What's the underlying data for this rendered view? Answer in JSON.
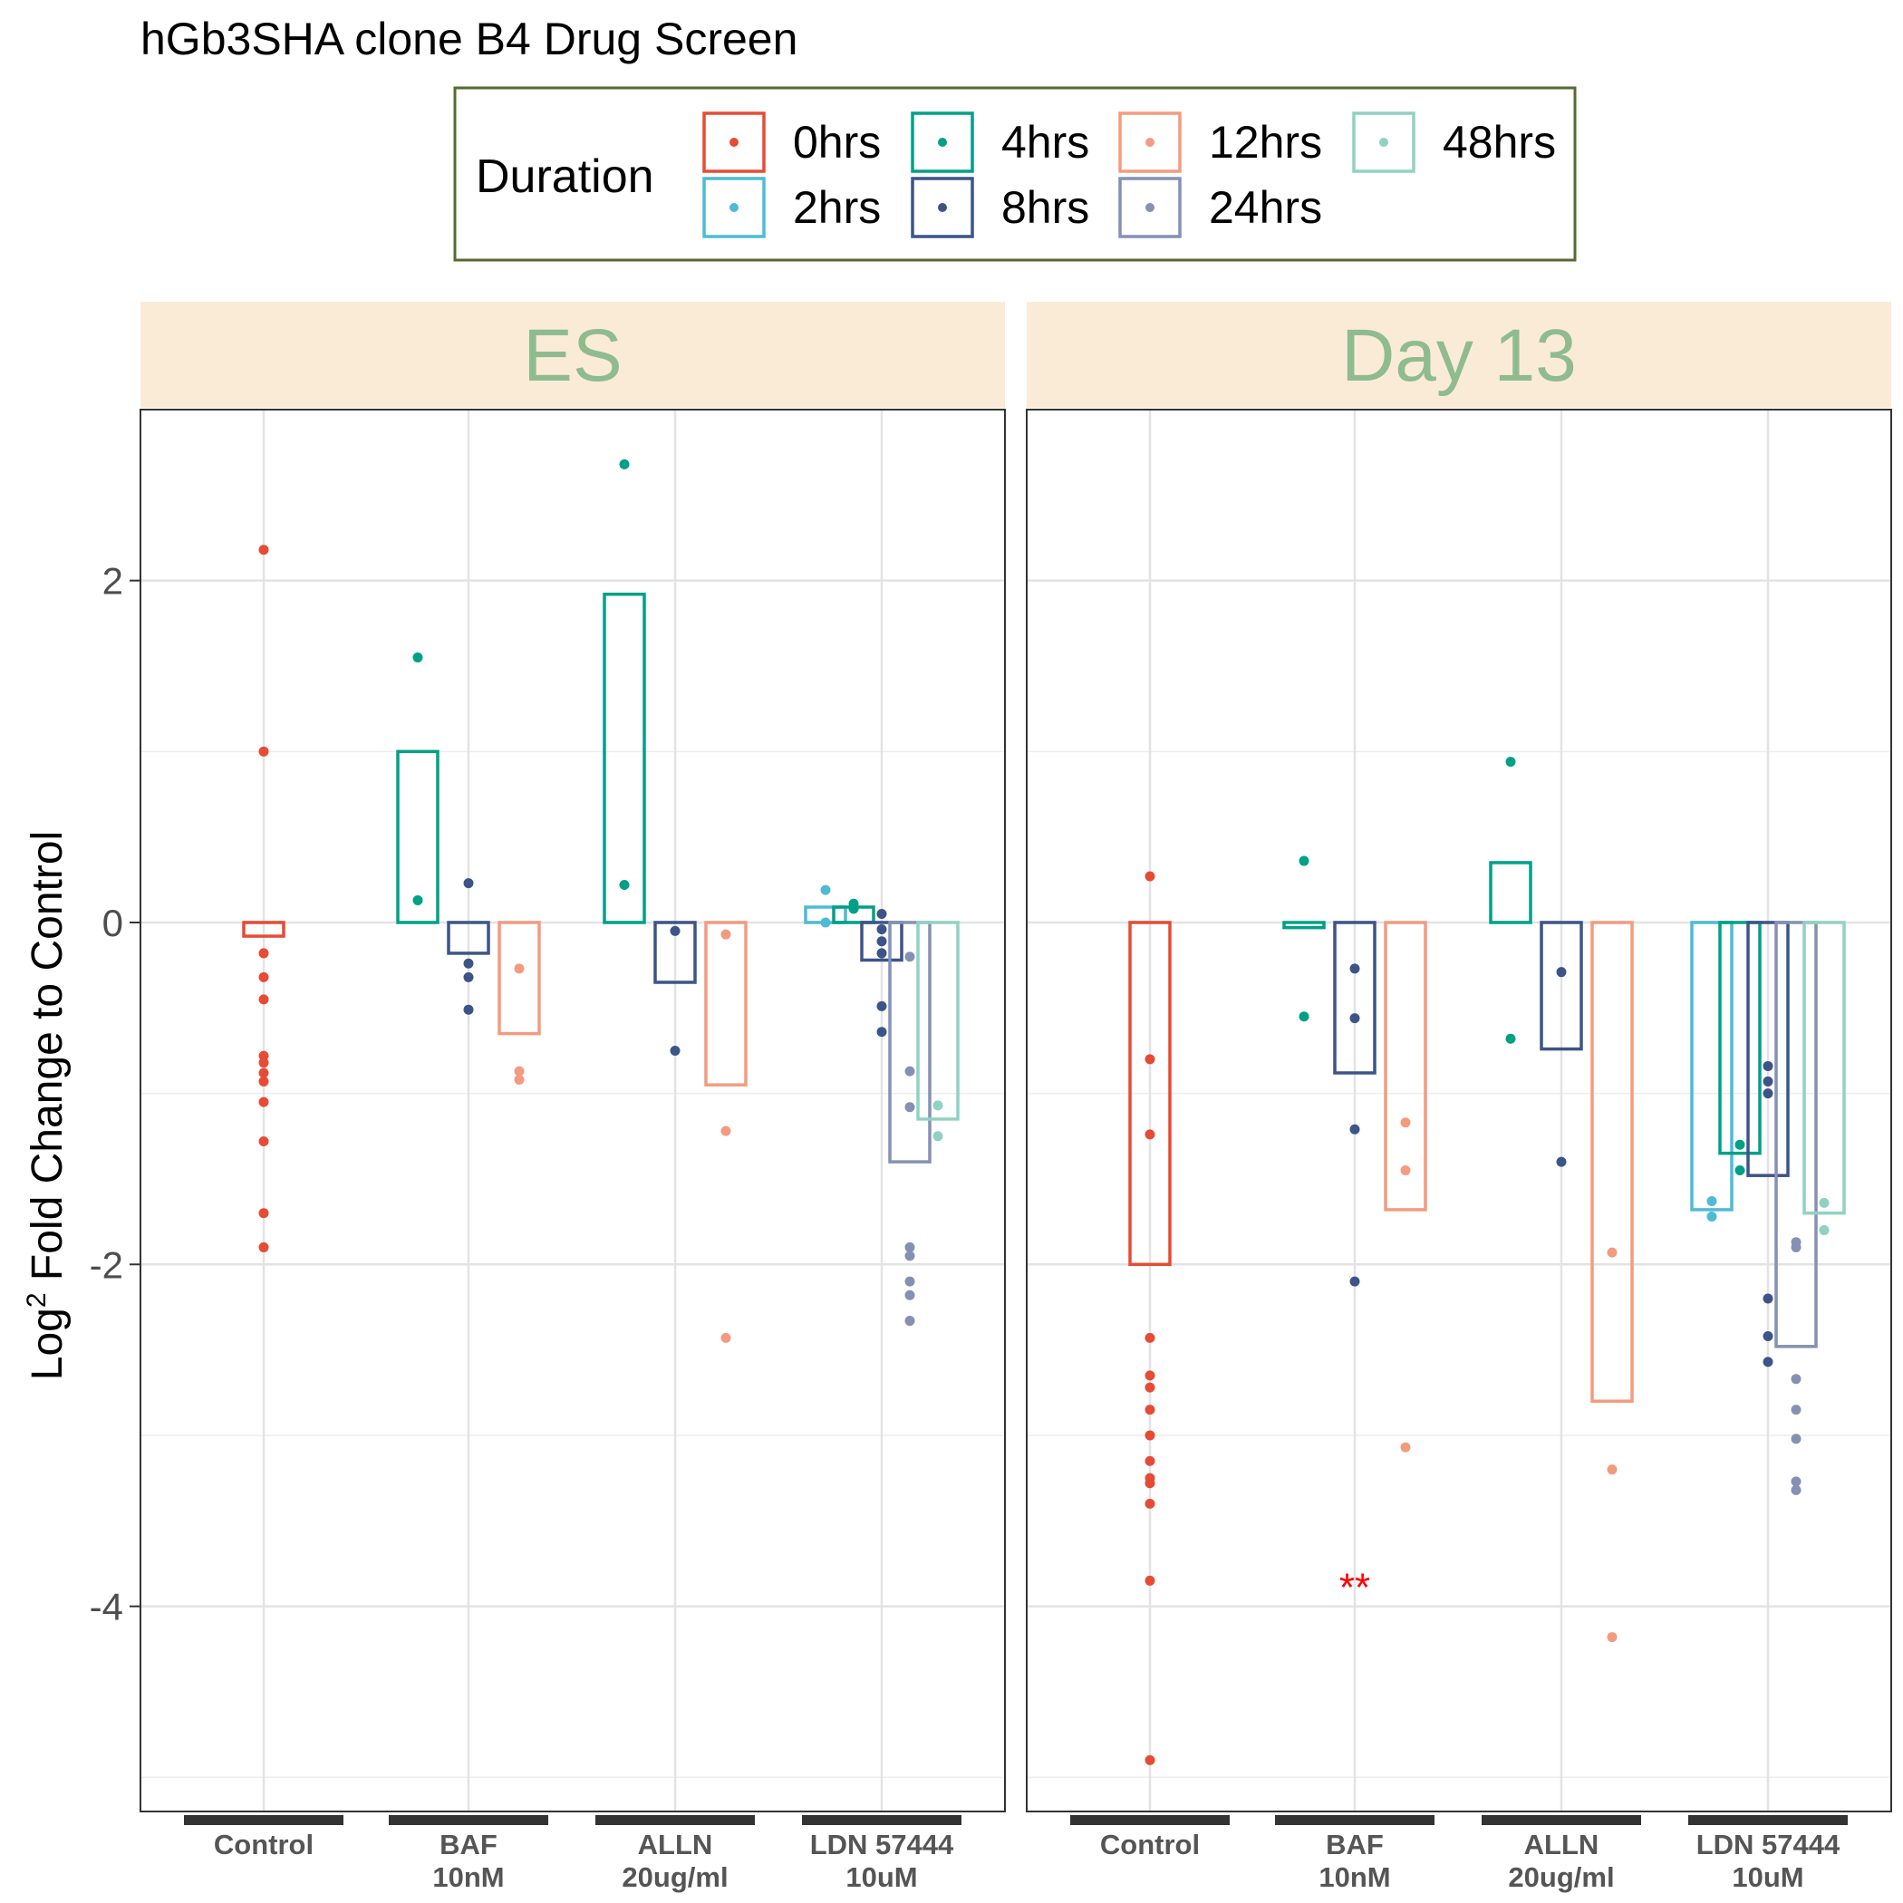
{
  "chart_data": {
    "type": "bar",
    "title": "hGb3SHA clone B4 Drug Screen",
    "ylabel_main": "Log",
    "ylabel_sup": "2",
    "ylabel_rest": " Fold Change to Control",
    "ylim": [
      -5.2,
      3.0
    ],
    "yticks": [
      {
        "value": 2,
        "label": "2"
      },
      {
        "value": 0,
        "label": "0"
      },
      {
        "value": -2,
        "label": "-2"
      },
      {
        "value": -4,
        "label": "-4"
      }
    ],
    "yminor": [
      3,
      1,
      -1,
      -3,
      -5
    ],
    "grid": true,
    "legend": {
      "title": "Duration",
      "position": "top",
      "entries": [
        {
          "key": "0hrs",
          "label": "0hrs"
        },
        {
          "key": "4hrs",
          "label": "4hrs"
        },
        {
          "key": "12hrs",
          "label": "12hrs"
        },
        {
          "key": "48hrs",
          "label": "48hrs"
        },
        {
          "key": "2hrs",
          "label": "2hrs"
        },
        {
          "key": "8hrs",
          "label": "8hrs"
        },
        {
          "key": "24hrs",
          "label": "24hrs"
        }
      ]
    },
    "colors": {
      "0hrs": "#e64b35",
      "2hrs": "#4dbbd5",
      "4hrs": "#00a087",
      "8hrs": "#3c5488",
      "12hrs": "#f39b7f",
      "24hrs": "#8491b4",
      "48hrs": "#91d1c2",
      "strip_bg": "#faebd7",
      "strip_text": "#8fbc8f",
      "legend_border": "#556b2f",
      "annotation": "#ff0000"
    },
    "categories": [
      {
        "line1": "Control",
        "line2": ""
      },
      {
        "line1": "BAF",
        "line2": "10nM"
      },
      {
        "line1": "ALLN",
        "line2": "20ug/ml"
      },
      {
        "line1": "LDN 57444",
        "line2": "10uM"
      }
    ],
    "panels": [
      {
        "label": "ES",
        "groups": [
          {
            "category": 0,
            "bars": [
              {
                "duration": "0hrs",
                "value": -0.08,
                "points": [
                  2.18,
                  1.0,
                  -0.18,
                  -0.32,
                  -0.45,
                  -0.78,
                  -0.82,
                  -0.88,
                  -0.93,
                  -1.05,
                  -1.28,
                  -1.7,
                  -1.9
                ]
              }
            ]
          },
          {
            "category": 1,
            "bars": [
              {
                "duration": "4hrs",
                "value": 1.0,
                "points": [
                  1.55,
                  0.13
                ]
              },
              {
                "duration": "8hrs",
                "value": -0.18,
                "points": [
                  0.23,
                  -0.24,
                  -0.32,
                  -0.51
                ]
              },
              {
                "duration": "12hrs",
                "value": -0.65,
                "points": [
                  -0.27,
                  -0.87,
                  -0.92
                ]
              }
            ]
          },
          {
            "category": 2,
            "bars": [
              {
                "duration": "4hrs",
                "value": 1.92,
                "points": [
                  2.68,
                  0.22
                ]
              },
              {
                "duration": "8hrs",
                "value": -0.35,
                "points": [
                  -0.05,
                  -0.75
                ]
              },
              {
                "duration": "12hrs",
                "value": -0.95,
                "points": [
                  -0.07,
                  -1.22,
                  -2.43
                ]
              }
            ]
          },
          {
            "category": 3,
            "bars": [
              {
                "duration": "2hrs",
                "value": 0.09,
                "points": [
                  0.19,
                  0.0
                ]
              },
              {
                "duration": "4hrs",
                "value": 0.09,
                "points": [
                  0.11,
                  0.08
                ]
              },
              {
                "duration": "8hrs",
                "value": -0.22,
                "points": [
                  0.05,
                  -0.04,
                  -0.11,
                  -0.18,
                  -0.49,
                  -0.64
                ]
              },
              {
                "duration": "24hrs",
                "value": -1.4,
                "points": [
                  -0.2,
                  -0.87,
                  -1.08,
                  -1.9,
                  -1.95,
                  -2.1,
                  -2.18,
                  -2.33
                ]
              },
              {
                "duration": "48hrs",
                "value": -1.15,
                "points": [
                  -1.07,
                  -1.25
                ]
              }
            ]
          }
        ]
      },
      {
        "label": "Day 13",
        "groups": [
          {
            "category": 0,
            "bars": [
              {
                "duration": "0hrs",
                "value": -2.0,
                "points": [
                  0.27,
                  -0.8,
                  -1.24,
                  -2.43,
                  -2.65,
                  -2.72,
                  -2.85,
                  -3.0,
                  -3.15,
                  -3.25,
                  -3.28,
                  -3.4,
                  -3.85,
                  -4.9
                ]
              }
            ]
          },
          {
            "category": 1,
            "bars": [
              {
                "duration": "4hrs",
                "value": -0.03,
                "points": [
                  0.36,
                  -0.55
                ]
              },
              {
                "duration": "8hrs",
                "value": -0.88,
                "points": [
                  -0.27,
                  -0.56,
                  -1.21,
                  -2.1
                ]
              },
              {
                "duration": "12hrs",
                "value": -1.68,
                "points": [
                  -1.17,
                  -1.45,
                  -3.07
                ]
              }
            ]
          },
          {
            "category": 2,
            "bars": [
              {
                "duration": "4hrs",
                "value": 0.35,
                "points": [
                  0.94,
                  -0.68
                ]
              },
              {
                "duration": "8hrs",
                "value": -0.74,
                "points": [
                  -0.29,
                  -1.4
                ]
              },
              {
                "duration": "12hrs",
                "value": -2.8,
                "points": [
                  -1.93,
                  -3.2,
                  -4.18
                ]
              }
            ]
          },
          {
            "category": 3,
            "bars": [
              {
                "duration": "2hrs",
                "value": -1.68,
                "points": [
                  -1.63,
                  -1.72
                ]
              },
              {
                "duration": "4hrs",
                "value": -1.35,
                "points": [
                  -1.3,
                  -1.45
                ]
              },
              {
                "duration": "8hrs",
                "value": -1.48,
                "points": [
                  -0.84,
                  -0.93,
                  -1.0,
                  -2.2,
                  -2.42,
                  -2.57
                ]
              },
              {
                "duration": "24hrs",
                "value": -2.48,
                "points": [
                  -1.87,
                  -1.9,
                  -2.67,
                  -2.85,
                  -3.02,
                  -3.27,
                  -3.32
                ]
              },
              {
                "duration": "48hrs",
                "value": -1.7,
                "points": [
                  -1.64,
                  -1.8
                ]
              }
            ]
          }
        ],
        "annotation": {
          "text": "**",
          "category": 1,
          "y": -3.85
        }
      }
    ]
  }
}
